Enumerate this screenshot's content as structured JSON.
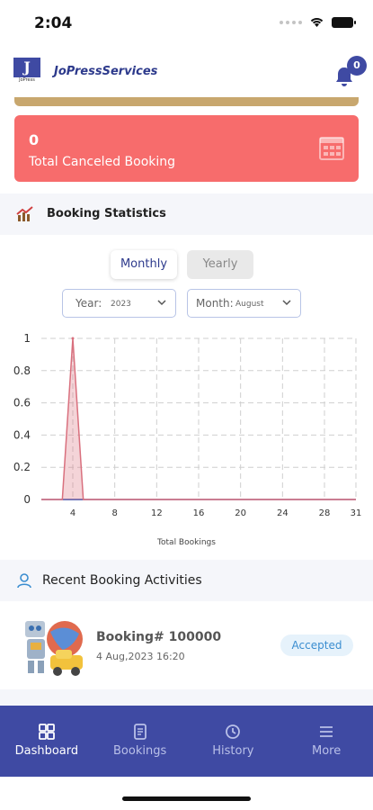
{
  "status_bar": {
    "time": "2:04"
  },
  "header": {
    "app_name": "JoPressServices",
    "logo_letter": "J",
    "logo_text": "JoPress",
    "notification_count": "0"
  },
  "canceled_card": {
    "count": "0",
    "label": "Total Canceled Booking",
    "color": "#f76c6c"
  },
  "stats": {
    "title": "Booking Statistics",
    "toggle": {
      "monthly": "Monthly",
      "yearly": "Yearly",
      "selected": "Monthly"
    },
    "year_select": {
      "label": "Year:",
      "value": "2023"
    },
    "month_select": {
      "label": "Month:",
      "value": "August"
    }
  },
  "chart_data": {
    "type": "line",
    "xlabel": "Total Bookings",
    "ylabel": "",
    "x": [
      1,
      2,
      3,
      4,
      5,
      6,
      7,
      8,
      9,
      10,
      11,
      12,
      13,
      14,
      15,
      16,
      17,
      18,
      19,
      20,
      21,
      22,
      23,
      24,
      25,
      26,
      27,
      28,
      29,
      30,
      31
    ],
    "series": [
      {
        "values": [
          0,
          0,
          0,
          1,
          0,
          0,
          0,
          0,
          0,
          0,
          0,
          0,
          0,
          0,
          0,
          0,
          0,
          0,
          0,
          0,
          0,
          0,
          0,
          0,
          0,
          0,
          0,
          0,
          0,
          0,
          0
        ],
        "color": "#d9707e"
      }
    ],
    "xticks": [
      "4",
      "8",
      "12",
      "16",
      "20",
      "24",
      "28",
      "31"
    ],
    "yticks": [
      "1",
      "0.8",
      "0.6",
      "0.4",
      "0.2",
      "0"
    ],
    "xlim": [
      1,
      31
    ],
    "ylim": [
      0,
      1
    ],
    "grid": true
  },
  "recent": {
    "title": "Recent Booking Activities",
    "items": [
      {
        "id": "Booking# 100000",
        "date": "4 Aug,2023 16:20",
        "status": "Accepted"
      }
    ]
  },
  "nav": [
    {
      "label": "Dashboard",
      "icon": "dashboard-icon"
    },
    {
      "label": "Bookings",
      "icon": "bookings-icon"
    },
    {
      "label": "History",
      "icon": "history-icon"
    },
    {
      "label": "More",
      "icon": "menu-icon"
    }
  ],
  "colors": {
    "primary": "#3f4aa3",
    "accent_tan": "#c8a76e",
    "status_accepted": "#3a8dd0"
  }
}
